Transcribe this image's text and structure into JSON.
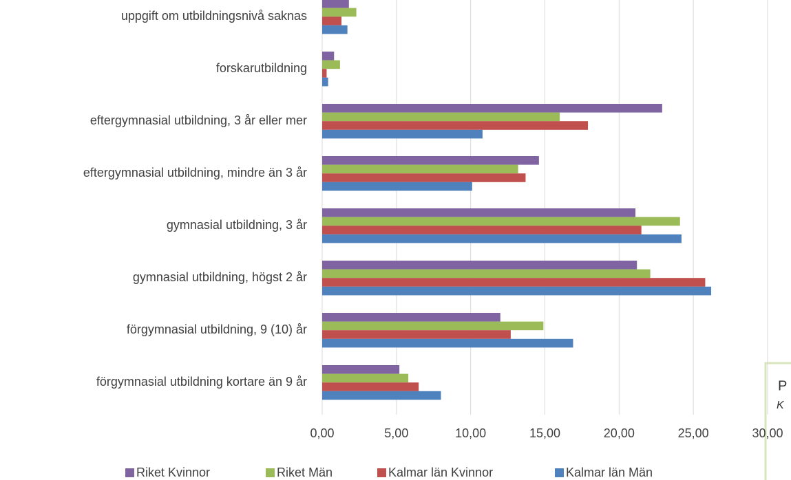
{
  "chart_data": {
    "type": "hbar",
    "categories": [
      "uppgift om utbildningsnivå saknas",
      "forskarutbildning",
      "eftergymnasial utbildning, 3 år eller mer",
      "eftergymnasial utbildning, mindre än 3 år",
      "gymnasial utbildning, 3 år",
      "gymnasial utbildning, högst 2 år",
      "förgymnasial utbildning, 9 (10) år",
      "förgymnasial utbildning kortare än 9 år"
    ],
    "series": [
      {
        "name": "Riket Kvinnor",
        "color": "#8064a2",
        "values": [
          1.8,
          0.8,
          22.9,
          14.6,
          21.1,
          21.2,
          12.0,
          5.2
        ]
      },
      {
        "name": "Riket Män",
        "color": "#9bbb59",
        "values": [
          2.3,
          1.2,
          16.0,
          13.2,
          24.1,
          22.1,
          14.9,
          5.8
        ]
      },
      {
        "name": "Kalmar län Kvinnor",
        "color": "#c0504d",
        "values": [
          1.3,
          0.3,
          17.9,
          13.7,
          21.5,
          25.8,
          12.7,
          6.5
        ]
      },
      {
        "name": "Kalmar län Män",
        "color": "#4f81bd",
        "values": [
          1.7,
          0.4,
          10.8,
          10.1,
          24.2,
          26.2,
          16.9,
          8.0
        ]
      }
    ],
    "xlim": [
      0,
      30
    ],
    "xticks": [
      {
        "value": 0,
        "label": "0,00"
      },
      {
        "value": 5,
        "label": "5,00"
      },
      {
        "value": 10,
        "label": "10,00"
      },
      {
        "value": 15,
        "label": "15,00"
      },
      {
        "value": 20,
        "label": "20,00"
      },
      {
        "value": 25,
        "label": "25,00"
      },
      {
        "value": 30,
        "label": "30,00"
      }
    ],
    "grid": true,
    "legend": "bottom"
  },
  "overlay": {
    "lines": [
      "P",
      "K"
    ]
  }
}
